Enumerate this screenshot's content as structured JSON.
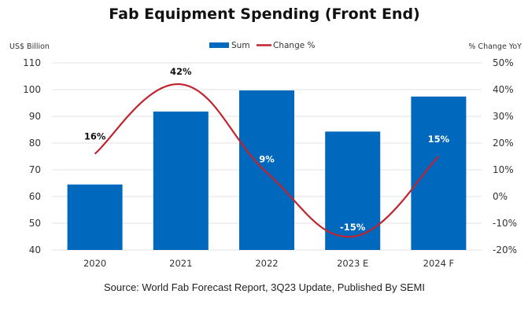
{
  "chart_data": {
    "type": "bar+line",
    "title": "Fab Equipment Spending (Front End)",
    "categories": [
      "2020",
      "2021",
      "2022",
      "2023 E",
      "2024 F"
    ],
    "series": [
      {
        "name": "Sum",
        "type": "bar",
        "axis": "left",
        "values": [
          64.5,
          91.8,
          99.7,
          84.3,
          97.4
        ]
      },
      {
        "name": "Change %",
        "type": "line",
        "axis": "right",
        "smooth": true,
        "values": [
          16,
          42,
          9,
          -15,
          15
        ],
        "labels": [
          "16%",
          "42%",
          "9%",
          "-15%",
          "15%"
        ]
      }
    ],
    "ylabel": "US$ Billion",
    "y2label": "% Change YoY",
    "ylim": [
      40,
      110
    ],
    "y2lim": [
      -20,
      50
    ],
    "yticks": [
      "40",
      "50",
      "60",
      "70",
      "80",
      "90",
      "100",
      "110"
    ],
    "y2ticks": [
      "-20%",
      "-10%",
      "0%",
      "10%",
      "20%",
      "30%",
      "40%",
      "50%"
    ],
    "grid": true,
    "legend": {
      "placement": "top-center",
      "entries": [
        "Sum",
        "Change %"
      ]
    },
    "colors": {
      "bar": "#0068bd",
      "line": "#c0242f",
      "grid": "#e3e3e3"
    },
    "source": "Source: World Fab Forecast Report, 3Q23 Update, Published By SEMI"
  }
}
